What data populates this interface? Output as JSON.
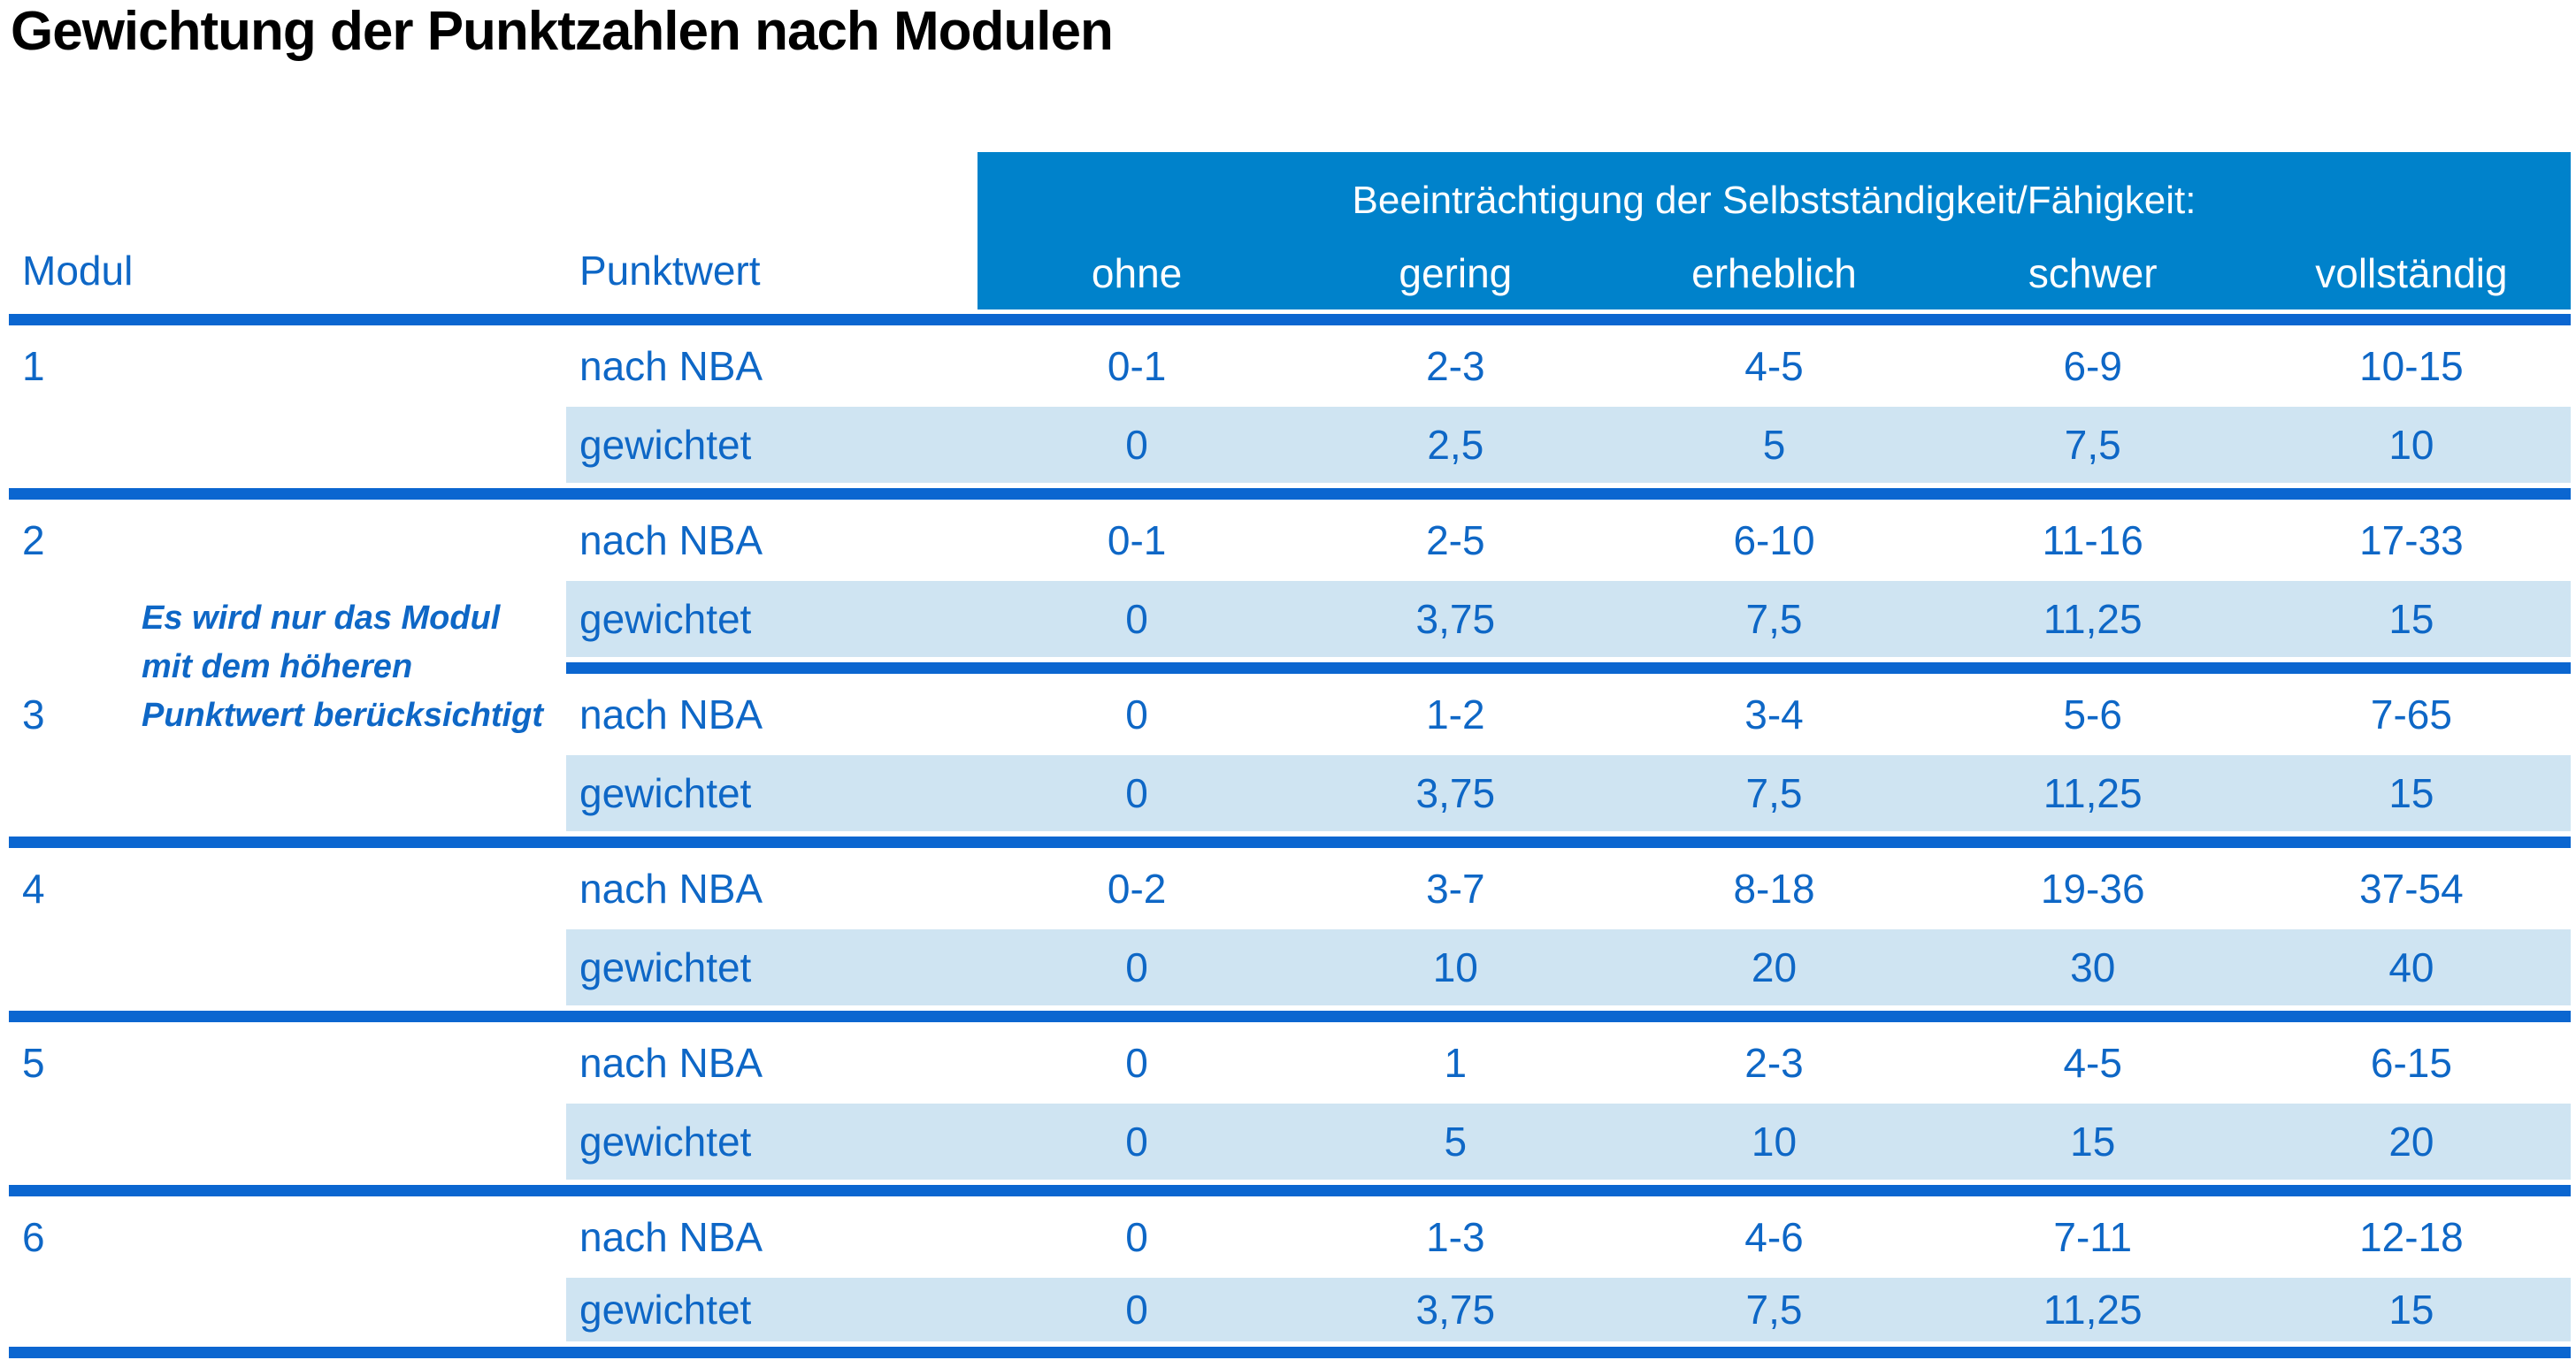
{
  "title": "Gewichtung der Punktzahlen nach Modulen",
  "table": {
    "col_headers": {
      "modul": "Modul",
      "punktwert": "Punktwert"
    },
    "impairment_header": "Beeinträchtigung der Selbstständigkeit/Fähigkeit:",
    "severity_levels": [
      "ohne",
      "gering",
      "erheblich",
      "schwer",
      "vollständig"
    ],
    "row_labels": {
      "raw": "nach NBA",
      "weighted": "gewichtet"
    },
    "note_lines": [
      "Es wird nur das Modul",
      "mit dem höheren",
      "Punktwert berücksichtigt"
    ],
    "modules": [
      {
        "id": "1",
        "nach_nba": [
          "0-1",
          "2-3",
          "4-5",
          "6-9",
          "10-15"
        ],
        "gewichtet": [
          "0",
          "2,5",
          "5",
          "7,5",
          "10"
        ]
      },
      {
        "id": "2",
        "nach_nba": [
          "0-1",
          "2-5",
          "6-10",
          "11-16",
          "17-33"
        ],
        "gewichtet": [
          "0",
          "3,75",
          "7,5",
          "11,25",
          "15"
        ]
      },
      {
        "id": "3",
        "nach_nba": [
          "0",
          "1-2",
          "3-4",
          "5-6",
          "7-65"
        ],
        "gewichtet": [
          "0",
          "3,75",
          "7,5",
          "11,25",
          "15"
        ]
      },
      {
        "id": "4",
        "nach_nba": [
          "0-2",
          "3-7",
          "8-18",
          "19-36",
          "37-54"
        ],
        "gewichtet": [
          "0",
          "10",
          "20",
          "30",
          "40"
        ]
      },
      {
        "id": "5",
        "nach_nba": [
          "0",
          "1",
          "2-3",
          "4-5",
          "6-15"
        ],
        "gewichtet": [
          "0",
          "5",
          "10",
          "15",
          "20"
        ]
      },
      {
        "id": "6",
        "nach_nba": [
          "0",
          "1-3",
          "4-6",
          "7-11",
          "12-18"
        ],
        "gewichtet": [
          "0",
          "3,75",
          "7,5",
          "11,25",
          "15"
        ]
      }
    ]
  },
  "colors": {
    "header_bg": "#0082cb",
    "divider": "#0b66d0",
    "row_alt_bg": "#cfe4f2",
    "text_blue": "#0e67c6",
    "title_color": "#000000"
  }
}
